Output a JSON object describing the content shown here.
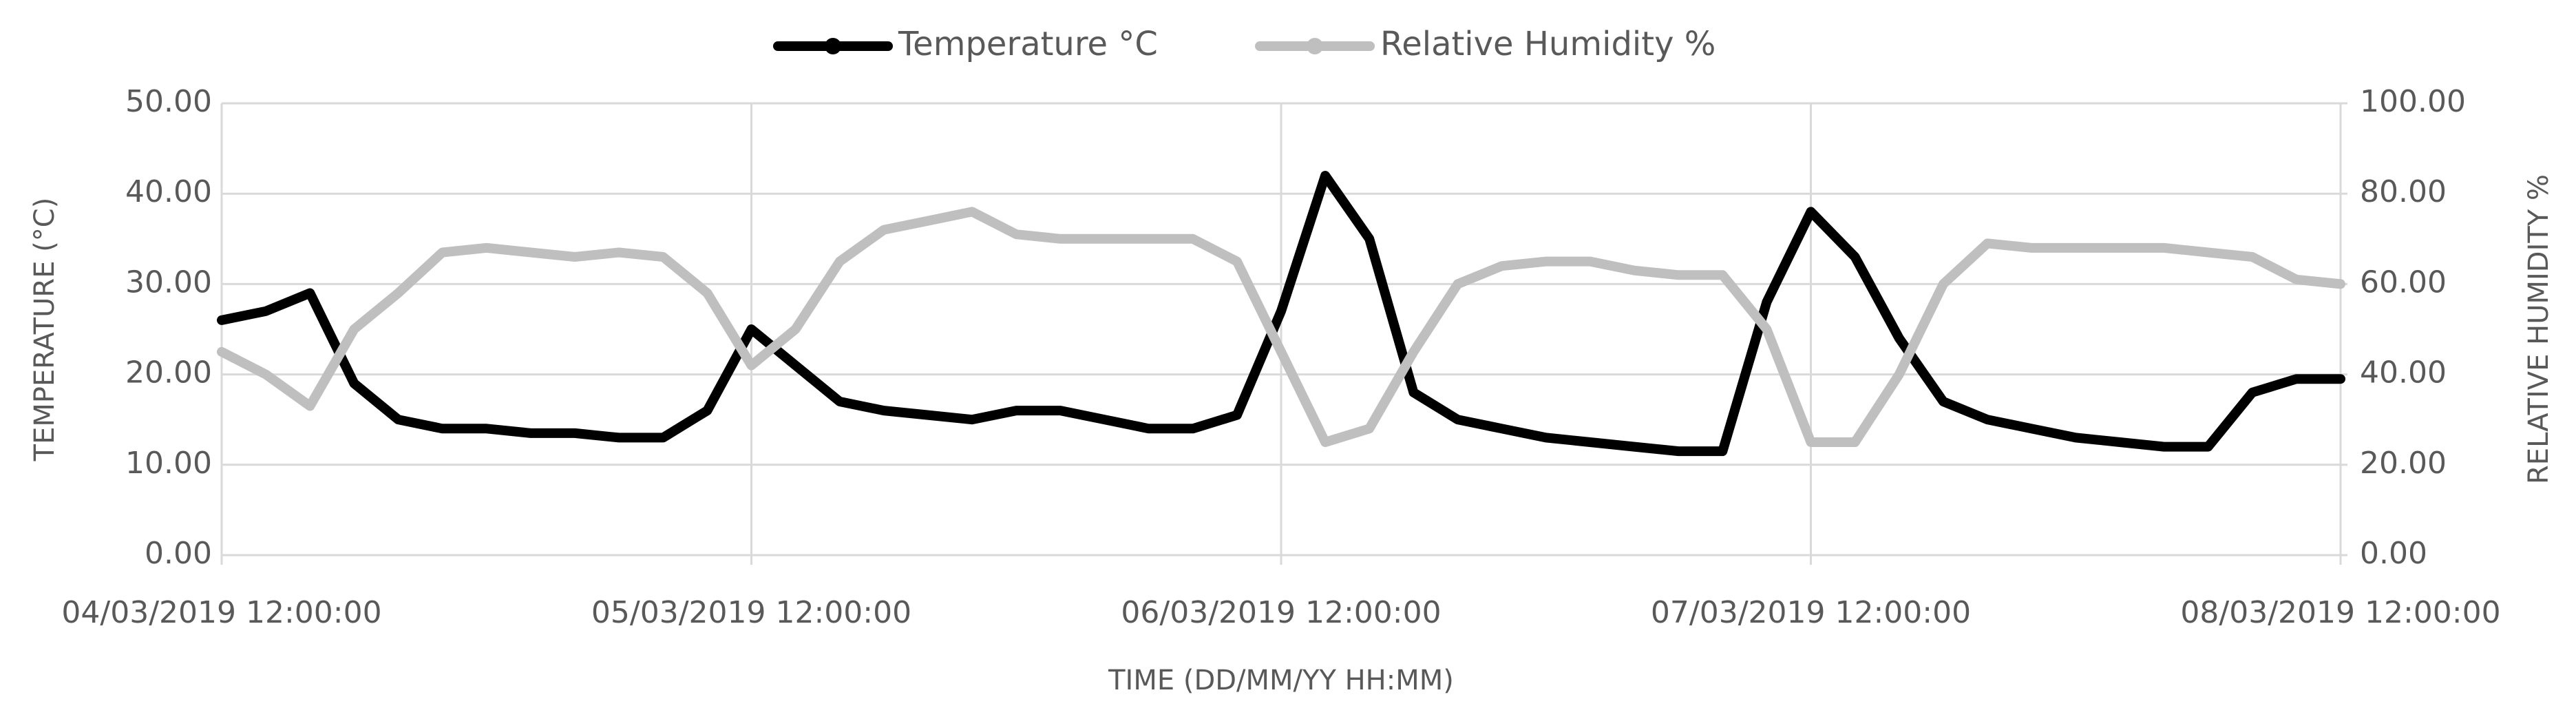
{
  "chart_data": {
    "type": "line",
    "x_label": "TIME (DD/MM/YY HH:MM)",
    "y_label": "TEMPERATURE (°C)",
    "y2_label": "RELATIVE HUMIDITY %",
    "x": [
      "2019-03-04 12:00",
      "2019-03-04 14:00",
      "2019-03-04 16:00",
      "2019-03-04 18:00",
      "2019-03-04 20:00",
      "2019-03-04 22:00",
      "2019-03-05 00:00",
      "2019-03-05 02:00",
      "2019-03-05 04:00",
      "2019-03-05 06:00",
      "2019-03-05 08:00",
      "2019-03-05 10:00",
      "2019-03-05 12:00",
      "2019-03-05 14:00",
      "2019-03-05 16:00",
      "2019-03-05 18:00",
      "2019-03-05 20:00",
      "2019-03-05 22:00",
      "2019-03-06 00:00",
      "2019-03-06 02:00",
      "2019-03-06 04:00",
      "2019-03-06 06:00",
      "2019-03-06 08:00",
      "2019-03-06 10:00",
      "2019-03-06 12:00",
      "2019-03-06 14:00",
      "2019-03-06 16:00",
      "2019-03-06 18:00",
      "2019-03-06 20:00",
      "2019-03-06 22:00",
      "2019-03-07 00:00",
      "2019-03-07 02:00",
      "2019-03-07 04:00",
      "2019-03-07 06:00",
      "2019-03-07 08:00",
      "2019-03-07 10:00",
      "2019-03-07 12:00",
      "2019-03-07 14:00",
      "2019-03-07 16:00",
      "2019-03-07 18:00",
      "2019-03-07 20:00",
      "2019-03-07 22:00",
      "2019-03-08 00:00",
      "2019-03-08 02:00",
      "2019-03-08 04:00",
      "2019-03-08 06:00",
      "2019-03-08 08:00",
      "2019-03-08 10:00",
      "2019-03-08 12:00"
    ],
    "series": [
      {
        "name": "Temperature °C",
        "color": "#000000",
        "values": [
          26,
          27,
          29,
          19,
          15,
          14,
          14,
          13.5,
          13.5,
          13,
          13,
          16,
          25,
          21,
          17,
          16,
          15.5,
          15,
          16,
          16,
          15,
          14,
          14,
          15.5,
          27,
          42,
          35,
          18,
          15,
          14,
          13,
          12.5,
          12,
          11.5,
          11.5,
          28,
          38,
          33,
          24,
          17,
          15,
          14,
          13,
          12.5,
          12,
          12,
          18,
          19.5,
          19.5
        ]
      },
      {
        "name": "Relative Humidity %",
        "color": "#bfbfbf",
        "axis": "y2",
        "values": [
          45,
          40,
          33,
          50,
          58,
          67,
          68,
          67,
          66,
          67,
          66,
          58,
          42,
          50,
          65,
          72,
          74,
          76,
          71,
          70,
          70,
          70,
          70,
          65,
          45,
          25,
          28,
          45,
          60,
          64,
          65,
          65,
          63,
          62,
          62,
          50,
          25,
          25,
          40,
          60,
          69,
          68,
          68,
          68,
          68,
          67,
          66,
          61,
          60
        ]
      }
    ],
    "xlim": [
      "2019-03-04 12:00",
      "2019-03-08 12:00"
    ],
    "xticks": [
      {
        "value": "2019-03-04 12:00",
        "label": "04/03/2019 12:00:00"
      },
      {
        "value": "2019-03-05 12:00",
        "label": "05/03/2019 12:00:00"
      },
      {
        "value": "2019-03-06 12:00",
        "label": "06/03/2019 12:00:00"
      },
      {
        "value": "2019-03-07 12:00",
        "label": "07/03/2019 12:00:00"
      },
      {
        "value": "2019-03-08 12:00",
        "label": "08/03/2019 12:00:00"
      }
    ],
    "ylim": [
      0,
      50
    ],
    "yticks": [
      {
        "value": 0,
        "label": "0.00"
      },
      {
        "value": 10,
        "label": "10.00"
      },
      {
        "value": 20,
        "label": "20.00"
      },
      {
        "value": 30,
        "label": "30.00"
      },
      {
        "value": 40,
        "label": "40.00"
      },
      {
        "value": 50,
        "label": "50.00"
      }
    ],
    "y2lim": [
      0,
      100
    ],
    "y2ticks": [
      {
        "value": 0,
        "label": "0.00"
      },
      {
        "value": 20,
        "label": "20.00"
      },
      {
        "value": 40,
        "label": "40.00"
      },
      {
        "value": 60,
        "label": "60.00"
      },
      {
        "value": 80,
        "label": "80.00"
      },
      {
        "value": 100,
        "label": "100.00"
      }
    ],
    "grid": true,
    "legend": "top"
  }
}
